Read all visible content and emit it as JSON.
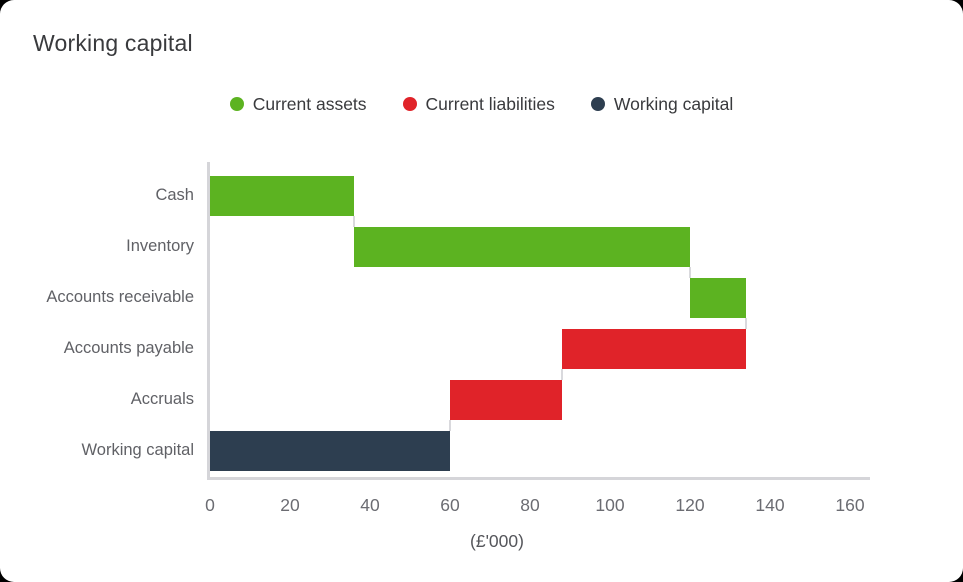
{
  "title": "Working capital",
  "legend": {
    "items": [
      {
        "label": "Current assets",
        "color": "#5CB321"
      },
      {
        "label": "Current liabilities",
        "color": "#E02329"
      },
      {
        "label": "Working capital",
        "color": "#2D3E50"
      }
    ]
  },
  "chart_data": {
    "type": "bar",
    "variant": "horizontal_waterfall",
    "title": "Working capital",
    "xlabel": "(£'000)",
    "categories": [
      "Cash",
      "Inventory",
      "Accounts receivable",
      "Accounts payable",
      "Accruals",
      "Working capital"
    ],
    "bars": [
      {
        "category": "Cash",
        "series": "Current assets",
        "value": 36,
        "start": 0,
        "end": 36
      },
      {
        "category": "Inventory",
        "series": "Current assets",
        "value": 84,
        "start": 36,
        "end": 120
      },
      {
        "category": "Accounts receivable",
        "series": "Current assets",
        "value": 14,
        "start": 120,
        "end": 134
      },
      {
        "category": "Accounts payable",
        "series": "Current liabilities",
        "value": -46,
        "start": 88,
        "end": 134
      },
      {
        "category": "Accruals",
        "series": "Current liabilities",
        "value": -28,
        "start": 60,
        "end": 88
      },
      {
        "category": "Working capital",
        "series": "Working capital",
        "value": 60,
        "start": 0,
        "end": 60
      }
    ],
    "connectors": [
      36,
      120,
      134,
      88,
      60
    ],
    "x_ticks": [
      0,
      20,
      40,
      60,
      80,
      100,
      120,
      140,
      160
    ],
    "xlim": [
      0,
      165
    ],
    "grid": false,
    "legend_position": "top-center",
    "series_colors": {
      "Current assets": "#5CB321",
      "Current liabilities": "#E02329",
      "Working capital": "#2D3E50"
    }
  },
  "colors": {
    "page_background": "#000000",
    "card_background": "#FFFFFF",
    "title_text": "#393A3D",
    "legend_text": "#393A3D",
    "category_text": "#606166",
    "tick_text": "#6B6C72",
    "axis_line": "#D5D5D9",
    "connector_line": "#D9D9DD"
  }
}
